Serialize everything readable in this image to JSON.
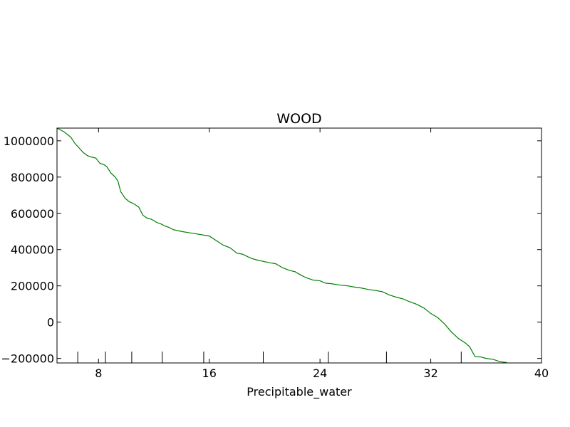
{
  "chart_data": {
    "type": "line",
    "title": "WOOD",
    "xlabel": "Precipitable_water",
    "ylabel": "",
    "xlim": [
      5,
      40
    ],
    "ylim": [
      -225000,
      1070000
    ],
    "x_ticks": [
      8,
      16,
      24,
      32,
      40
    ],
    "x_tick_labels": [
      "8",
      "16",
      "24",
      "32",
      "40"
    ],
    "y_ticks": [
      -200000,
      0,
      200000,
      400000,
      600000,
      800000,
      1000000
    ],
    "y_tick_labels": [
      "−200000",
      "0",
      "200000",
      "400000",
      "600000",
      "800000",
      "1000000"
    ],
    "rug_x": [
      6.5,
      8.5,
      10.4,
      12.6,
      15.6,
      19.9,
      24.6,
      28.8,
      34.2
    ],
    "grid": false,
    "series": [
      {
        "color": "#008000",
        "x": [
          5.0,
          5.5,
          6.0,
          6.3,
          6.6,
          6.9,
          7.2,
          7.5,
          7.8,
          8.1,
          8.4,
          8.6,
          8.9,
          9.2,
          9.4,
          9.6,
          9.9,
          10.2,
          10.4,
          10.6,
          10.9,
          11.2,
          11.5,
          11.8,
          12.0,
          12.2,
          12.5,
          12.8,
          13.1,
          13.4,
          13.7,
          14.0,
          14.4,
          14.8,
          15.2,
          15.6,
          16.0,
          16.5,
          17.0,
          17.5,
          18.0,
          18.4,
          18.8,
          19.1,
          19.5,
          19.9,
          20.4,
          20.8,
          21.3,
          21.8,
          22.2,
          22.6,
          23.0,
          23.5,
          24.0,
          24.4,
          24.8,
          25.4,
          26.0,
          26.6,
          27.0,
          27.5,
          28.0,
          28.5,
          29.0,
          29.5,
          30.0,
          30.5,
          31.0,
          31.5,
          32.0,
          32.5,
          33.0,
          33.5,
          34.0,
          34.5,
          34.8,
          35.2,
          35.6,
          36.0,
          36.5,
          37.0,
          37.5
        ],
        "y": [
          1070000,
          1050000,
          1020000,
          985000,
          960000,
          935000,
          918000,
          910000,
          905000,
          876000,
          868000,
          857000,
          822000,
          800000,
          778000,
          720000,
          685000,
          665000,
          658000,
          650000,
          635000,
          590000,
          574000,
          568000,
          560000,
          550000,
          542000,
          530000,
          522000,
          510000,
          505000,
          500000,
          495000,
          490000,
          485000,
          480000,
          475000,
          450000,
          425000,
          410000,
          380000,
          375000,
          360000,
          350000,
          342000,
          335000,
          327000,
          322000,
          300000,
          285000,
          278000,
          260000,
          245000,
          232000,
          228000,
          215000,
          212000,
          205000,
          200000,
          192000,
          188000,
          180000,
          175000,
          168000,
          150000,
          138000,
          128000,
          112000,
          98000,
          78000,
          48000,
          25000,
          -10000,
          -55000,
          -90000,
          -115000,
          -135000,
          -190000,
          -192000,
          -200000,
          -205000,
          -218000,
          -223000
        ]
      }
    ]
  }
}
